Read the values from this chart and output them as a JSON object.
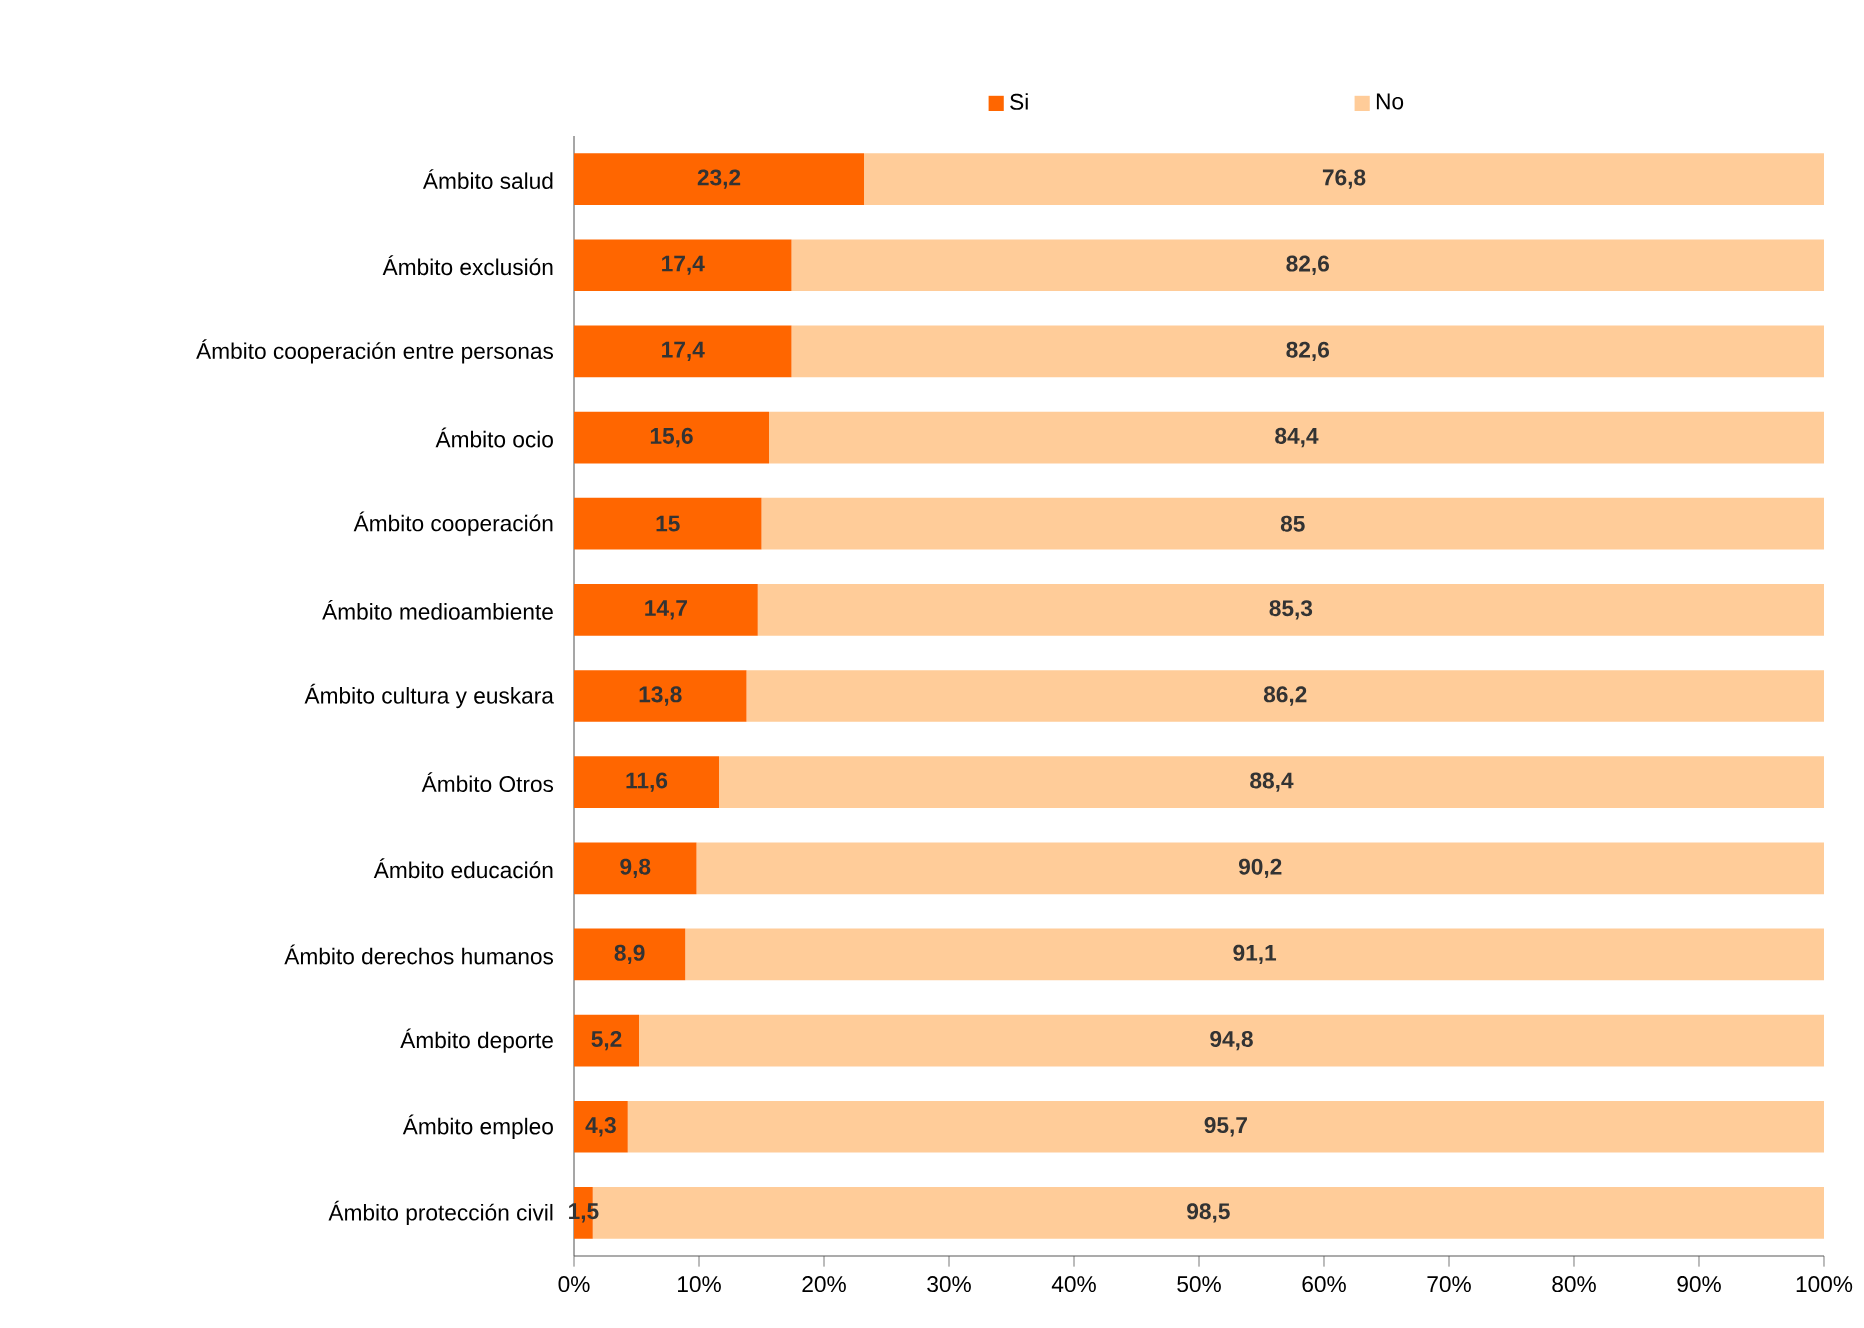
{
  "chart_data": {
    "type": "bar",
    "orientation": "horizontal",
    "stacked": true,
    "legend": "top",
    "categories": [
      "Ámbito salud",
      "Ámbito exclusión",
      "Ámbito cooperación entre personas",
      "Ámbito ocio",
      "Ámbito cooperación",
      "Ámbito medioambiente",
      "Ámbito cultura y euskara",
      "Ámbito Otros",
      "Ámbito educación",
      "Ámbito derechos humanos",
      "Ámbito deporte",
      "Ámbito empleo",
      "Ámbito protección civil"
    ],
    "series": [
      {
        "name": "Si",
        "color": "#ff6600",
        "values": [
          23.2,
          17.4,
          17.4,
          15.6,
          15,
          14.7,
          13.8,
          11.6,
          9.8,
          8.9,
          5.2,
          4.3,
          1.5
        ],
        "value_labels": [
          "23,2",
          "17,4",
          "17,4",
          "15,6",
          "15",
          "14,7",
          "13,8",
          "11,6",
          "9,8",
          "8,9",
          "5,2",
          "4,3",
          "1,5"
        ]
      },
      {
        "name": "No",
        "color": "#ffcc99",
        "values": [
          76.8,
          82.6,
          82.6,
          84.4,
          85,
          85.3,
          86.2,
          88.4,
          90.2,
          91.1,
          94.8,
          95.7,
          98.5
        ],
        "value_labels": [
          "76,8",
          "82,6",
          "82,6",
          "84,4",
          "85",
          "85,3",
          "86,2",
          "88,4",
          "90,2",
          "91,1",
          "94,8",
          "95,7",
          "98,5"
        ]
      }
    ],
    "xlim": [
      0,
      100
    ],
    "xticks": [
      {
        "value": 0,
        "label": "0%"
      },
      {
        "value": 10,
        "label": "10%"
      },
      {
        "value": 20,
        "label": "20%"
      },
      {
        "value": 30,
        "label": "30%"
      },
      {
        "value": 40,
        "label": "40%"
      },
      {
        "value": 50,
        "label": "50%"
      },
      {
        "value": 60,
        "label": "60%"
      },
      {
        "value": 70,
        "label": "70%"
      },
      {
        "value": 80,
        "label": "80%"
      },
      {
        "value": 90,
        "label": "90%"
      },
      {
        "value": 100,
        "label": "100%"
      }
    ]
  }
}
